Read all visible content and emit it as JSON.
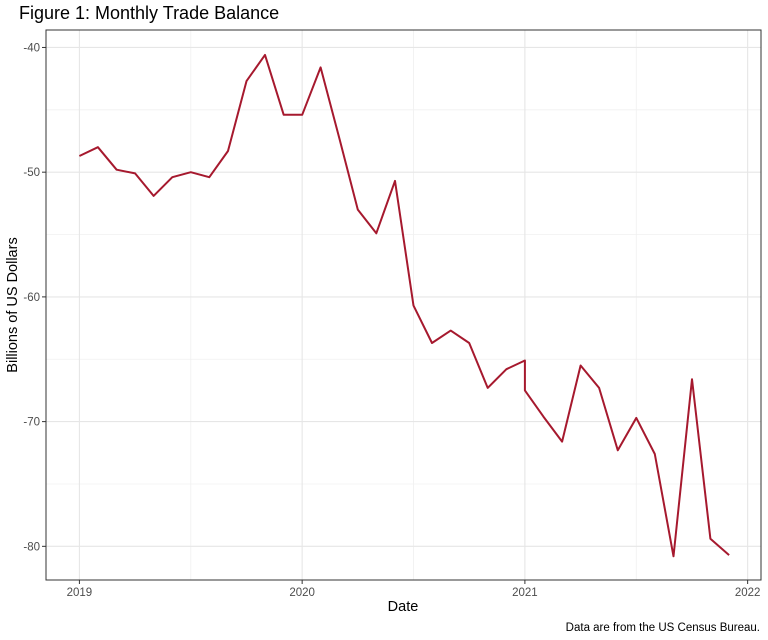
{
  "chart_data": {
    "type": "line",
    "title": "Figure 1: Monthly Trade Balance",
    "xlabel": "Date",
    "ylabel": "Billions of US Dollars",
    "caption": "Data are from the US Census Bureau.",
    "xlim": [
      2018.85,
      2022.06
    ],
    "ylim": [
      -82.7,
      -38.6
    ],
    "x_ticks": [
      2019,
      2020,
      2021,
      2022
    ],
    "x_tick_labels": [
      "2019",
      "2020",
      "2021",
      "2022"
    ],
    "y_ticks": [
      -40,
      -50,
      -60,
      -70,
      -80
    ],
    "y_tick_labels": [
      "-40",
      "-50",
      "-60",
      "-70",
      "-80"
    ],
    "grid": true,
    "legend": null,
    "line_color": "#A6192E",
    "series": [
      {
        "name": "Monthly Trade Balance",
        "points": [
          {
            "date": "2019-01",
            "x": 2019.0,
            "value": -48.7
          },
          {
            "date": "2019-02",
            "x": 2019.083,
            "value": -48.0
          },
          {
            "date": "2019-03",
            "x": 2019.167,
            "value": -49.8
          },
          {
            "date": "2019-04",
            "x": 2019.25,
            "value": -50.1
          },
          {
            "date": "2019-05",
            "x": 2019.333,
            "value": -51.9
          },
          {
            "date": "2019-06",
            "x": 2019.417,
            "value": -50.4
          },
          {
            "date": "2019-07",
            "x": 2019.5,
            "value": -50.0
          },
          {
            "date": "2019-08",
            "x": 2019.583,
            "value": -50.4
          },
          {
            "date": "2019-09",
            "x": 2019.667,
            "value": -48.3
          },
          {
            "date": "2019-10",
            "x": 2019.75,
            "value": -42.7
          },
          {
            "date": "2019-11",
            "x": 2019.833,
            "value": -40.6
          },
          {
            "date": "2019-12",
            "x": 2019.917,
            "value": -45.4
          },
          {
            "date": "2020-01",
            "x": 2020.0,
            "value": -45.4
          },
          {
            "date": "2020-02",
            "x": 2020.083,
            "value": -41.6
          },
          {
            "date": "2020-03",
            "x": 2020.167,
            "value": -47.3
          },
          {
            "date": "2020-04",
            "x": 2020.25,
            "value": -53.0
          },
          {
            "date": "2020-05",
            "x": 2020.333,
            "value": -54.9
          },
          {
            "date": "2020-06",
            "x": 2020.417,
            "value": -50.7
          },
          {
            "date": "2020-07",
            "x": 2020.5,
            "value": -60.7
          },
          {
            "date": "2020-08",
            "x": 2020.583,
            "value": -63.7
          },
          {
            "date": "2020-09",
            "x": 2020.667,
            "value": -62.7
          },
          {
            "date": "2020-10",
            "x": 2020.75,
            "value": -63.7
          },
          {
            "date": "2020-11",
            "x": 2020.833,
            "value": -67.3
          },
          {
            "date": "2020-12",
            "x": 2020.917,
            "value": -65.8
          },
          {
            "date": "2021-01",
            "x": 2021.0,
            "value": -65.1
          },
          {
            "date": "2021-01",
            "x": 2021.0,
            "value": -67.5
          },
          {
            "date": "2021-02",
            "x": 2021.083,
            "value": -69.6
          },
          {
            "date": "2021-03",
            "x": 2021.167,
            "value": -71.6
          },
          {
            "date": "2021-04",
            "x": 2021.25,
            "value": -65.5
          },
          {
            "date": "2021-05",
            "x": 2021.333,
            "value": -67.3
          },
          {
            "date": "2021-06",
            "x": 2021.417,
            "value": -72.3
          },
          {
            "date": "2021-07",
            "x": 2021.5,
            "value": -69.7
          },
          {
            "date": "2021-08",
            "x": 2021.583,
            "value": -72.6
          },
          {
            "date": "2021-09",
            "x": 2021.667,
            "value": -80.8
          },
          {
            "date": "2021-10",
            "x": 2021.75,
            "value": -66.6
          },
          {
            "date": "2021-11",
            "x": 2021.833,
            "value": -79.4
          },
          {
            "date": "2021-12",
            "x": 2021.917,
            "value": -80.7
          }
        ]
      }
    ]
  }
}
